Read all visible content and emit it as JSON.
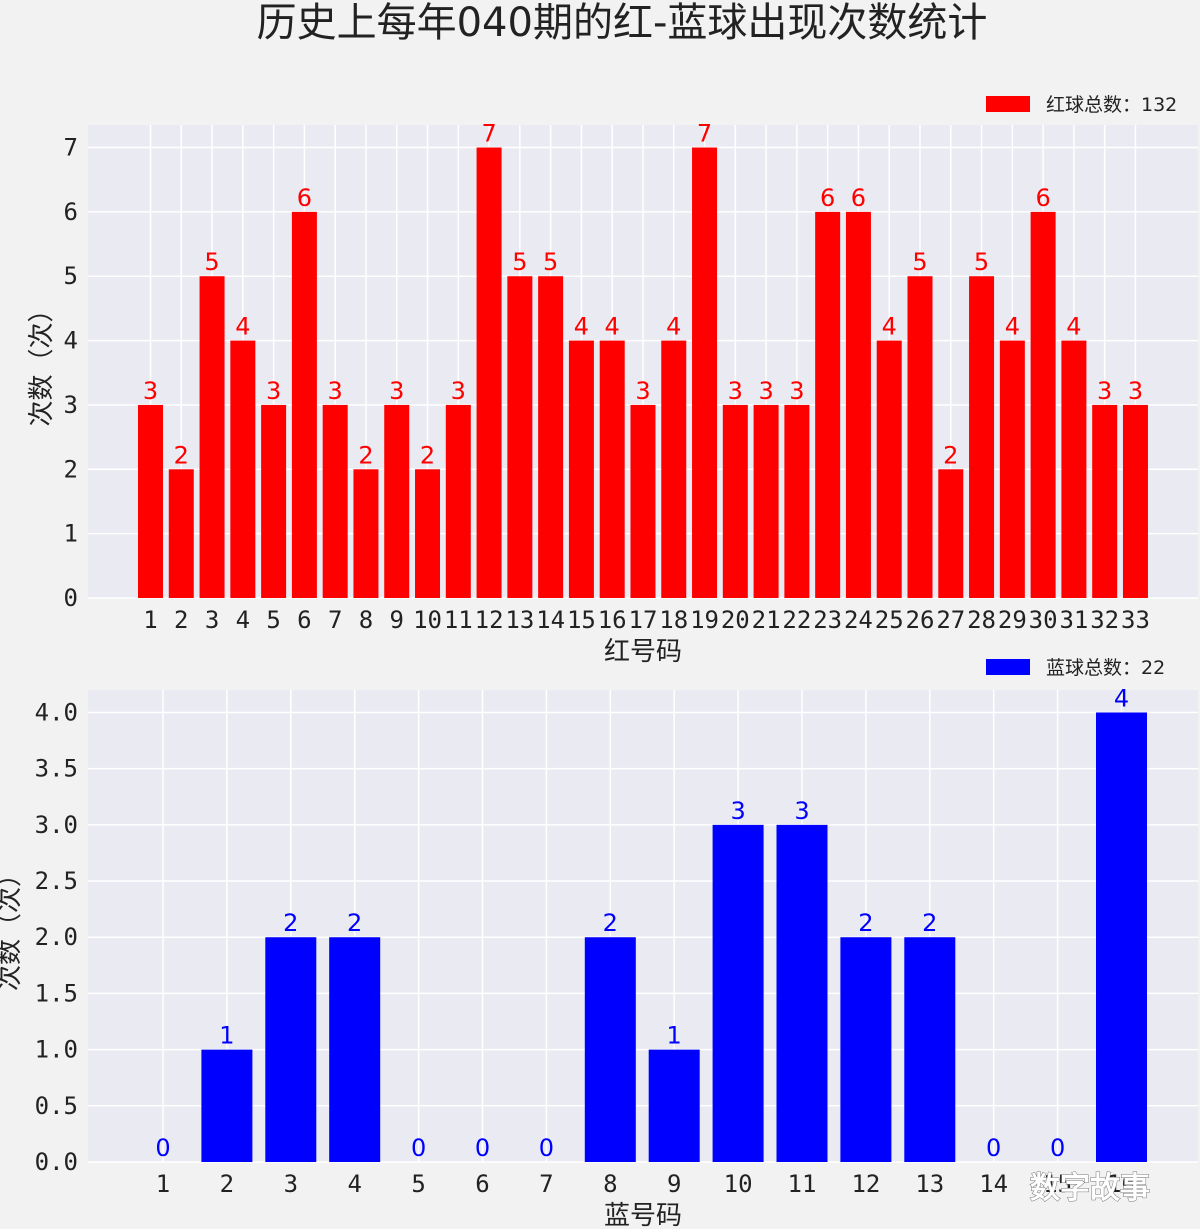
{
  "title": "历史上每年040期的红-蓝球出现次数统计",
  "watermark": "数字故事",
  "chart_data": [
    {
      "type": "bar",
      "categories": [
        "1",
        "2",
        "3",
        "4",
        "5",
        "6",
        "7",
        "8",
        "9",
        "10",
        "11",
        "12",
        "13",
        "14",
        "15",
        "16",
        "17",
        "18",
        "19",
        "20",
        "21",
        "22",
        "23",
        "24",
        "25",
        "26",
        "27",
        "28",
        "29",
        "30",
        "31",
        "32",
        "33"
      ],
      "values": [
        3,
        2,
        5,
        4,
        3,
        6,
        3,
        2,
        3,
        2,
        3,
        7,
        5,
        5,
        4,
        4,
        3,
        4,
        7,
        3,
        3,
        3,
        6,
        6,
        4,
        5,
        2,
        5,
        4,
        6,
        4,
        3,
        3
      ],
      "color": "#ff0000",
      "xlabel": "红号码",
      "ylabel": "次数（次）",
      "legend": "红球总数：132",
      "legend_position": "top-right",
      "ylim": [
        0,
        7.35
      ],
      "yticks": [
        "0",
        "1",
        "2",
        "3",
        "4",
        "5",
        "6",
        "7"
      ],
      "grid": true
    },
    {
      "type": "bar",
      "categories": [
        "1",
        "2",
        "3",
        "4",
        "5",
        "6",
        "7",
        "8",
        "9",
        "10",
        "11",
        "12",
        "13",
        "14",
        "15",
        "16"
      ],
      "values": [
        0,
        1,
        2,
        2,
        0,
        0,
        0,
        2,
        1,
        3,
        3,
        2,
        2,
        0,
        0,
        4
      ],
      "color": "#0000ff",
      "xlabel": "蓝号码",
      "ylabel": "次数（次）",
      "legend": "蓝球总数：22",
      "legend_position": "top-right",
      "ylim": [
        0,
        4.2
      ],
      "yticks": [
        "0.0",
        "0.5",
        "1.0",
        "1.5",
        "2.0",
        "2.5",
        "3.0",
        "3.5",
        "4.0"
      ],
      "grid": true
    }
  ]
}
